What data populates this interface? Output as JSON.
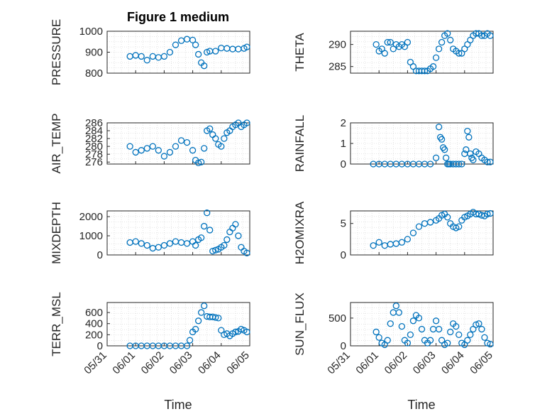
{
  "figure": {
    "title": "Figure 1 medium",
    "marker_color": "#0072BD",
    "xlabel": "Time",
    "x_tick_labels": [
      "05/31",
      "06/01",
      "06/02",
      "06/03",
      "06/04",
      "06/05"
    ]
  },
  "chart_data": [
    {
      "type": "scatter",
      "ylabel": "PRESSURE",
      "ylim": [
        800,
        1000
      ],
      "yticks": [
        800,
        900,
        1000
      ],
      "title": "Figure 1 medium",
      "x": [
        0.8,
        1.0,
        1.2,
        1.4,
        1.6,
        1.8,
        2.0,
        2.2,
        2.4,
        2.6,
        2.8,
        3.0,
        3.1,
        3.2,
        3.3,
        3.4,
        3.5,
        3.6,
        3.8,
        4.0,
        4.2,
        4.4,
        4.6,
        4.8,
        4.9
      ],
      "y": [
        880,
        885,
        880,
        862,
        880,
        875,
        880,
        900,
        935,
        955,
        962,
        958,
        935,
        890,
        850,
        835,
        900,
        905,
        905,
        920,
        918,
        915,
        915,
        918,
        925
      ]
    },
    {
      "type": "scatter",
      "ylabel": "THETA",
      "ylim": [
        283.5,
        293
      ],
      "yticks": [
        285,
        290
      ],
      "x": [
        0.9,
        1.0,
        1.1,
        1.2,
        1.3,
        1.4,
        1.5,
        1.6,
        1.7,
        1.8,
        1.9,
        2.0,
        2.1,
        2.2,
        2.3,
        2.4,
        2.5,
        2.6,
        2.7,
        2.8,
        2.9,
        3.0,
        3.1,
        3.2,
        3.3,
        3.4,
        3.5,
        3.6,
        3.7,
        3.8,
        3.9,
        4.0,
        4.1,
        4.2,
        4.3,
        4.4,
        4.5,
        4.6,
        4.7,
        4.8,
        4.9
      ],
      "y": [
        290,
        288.5,
        289,
        288,
        290.5,
        290.5,
        289,
        290,
        289.5,
        290,
        289.5,
        290.5,
        286,
        285,
        284,
        284,
        284,
        284,
        284,
        284.5,
        285,
        287,
        289,
        290.5,
        292,
        292.5,
        291,
        289,
        288.5,
        288,
        288,
        289,
        290,
        291,
        292,
        292.5,
        292.5,
        292,
        292,
        292.5,
        292
      ]
    },
    {
      "type": "scatter",
      "ylabel": "AIR_TEMP",
      "ylim": [
        275.5,
        286
      ],
      "yticks": [
        276,
        278,
        280,
        282,
        284,
        286
      ],
      "x": [
        0.8,
        1.0,
        1.2,
        1.4,
        1.6,
        1.8,
        2.0,
        2.2,
        2.4,
        2.6,
        2.8,
        3.0,
        3.1,
        3.2,
        3.3,
        3.4,
        3.5,
        3.6,
        3.7,
        3.8,
        3.9,
        4.0,
        4.1,
        4.2,
        4.3,
        4.4,
        4.5,
        4.6,
        4.7,
        4.8,
        4.9
      ],
      "y": [
        280,
        278.5,
        279,
        279.5,
        280,
        279,
        277.5,
        278.5,
        280,
        281.5,
        281,
        279,
        276.5,
        275.8,
        276,
        279.5,
        284,
        284.5,
        283,
        282,
        280.5,
        280,
        282,
        283.5,
        284,
        285,
        285.5,
        286,
        285,
        285.5,
        286
      ]
    },
    {
      "type": "scatter",
      "ylabel": "RAINFALL",
      "ylim": [
        0,
        2
      ],
      "yticks": [
        0,
        1,
        2
      ],
      "x": [
        0.8,
        1.0,
        1.2,
        1.4,
        1.6,
        1.8,
        2.0,
        2.2,
        2.4,
        2.6,
        2.8,
        3.0,
        3.1,
        3.15,
        3.2,
        3.25,
        3.3,
        3.35,
        3.4,
        3.45,
        3.5,
        3.6,
        3.7,
        3.8,
        3.9,
        4.0,
        4.05,
        4.1,
        4.15,
        4.2,
        4.25,
        4.3,
        4.4,
        4.5,
        4.6,
        4.7,
        4.8,
        4.9
      ],
      "y": [
        0,
        0,
        0,
        0,
        0,
        0,
        0,
        0,
        0,
        0,
        0,
        0.3,
        1.8,
        1.3,
        1.2,
        0.8,
        0.7,
        0.3,
        0,
        0,
        0,
        0,
        0,
        0,
        0,
        0.5,
        0.7,
        1.6,
        1.3,
        0.5,
        0.3,
        0.2,
        0.6,
        0.5,
        0.3,
        0.2,
        0.1,
        0.1
      ]
    },
    {
      "type": "scatter",
      "ylabel": "MIXDEPTH",
      "ylim": [
        0,
        2300
      ],
      "yticks": [
        0,
        1000,
        2000
      ],
      "x": [
        0.8,
        1.0,
        1.2,
        1.4,
        1.6,
        1.8,
        2.0,
        2.2,
        2.4,
        2.6,
        2.8,
        3.0,
        3.1,
        3.2,
        3.3,
        3.4,
        3.5,
        3.6,
        3.7,
        3.8,
        3.9,
        4.0,
        4.1,
        4.2,
        4.3,
        4.4,
        4.5,
        4.6,
        4.7,
        4.8,
        4.9
      ],
      "y": [
        650,
        700,
        600,
        500,
        350,
        400,
        500,
        600,
        700,
        650,
        600,
        700,
        500,
        800,
        900,
        1500,
        2200,
        1300,
        200,
        250,
        300,
        400,
        500,
        800,
        1200,
        1400,
        1600,
        1000,
        400,
        200,
        100
      ]
    },
    {
      "type": "scatter",
      "ylabel": "H2OMIXRA",
      "ylim": [
        0,
        7
      ],
      "yticks": [
        0,
        5
      ],
      "x": [
        0.8,
        1.0,
        1.2,
        1.4,
        1.6,
        1.8,
        2.0,
        2.2,
        2.4,
        2.6,
        2.8,
        3.0,
        3.1,
        3.2,
        3.3,
        3.4,
        3.5,
        3.6,
        3.7,
        3.8,
        3.9,
        4.0,
        4.1,
        4.2,
        4.3,
        4.4,
        4.5,
        4.6,
        4.7,
        4.8,
        4.9
      ],
      "y": [
        1.5,
        2,
        1.5,
        1.7,
        1.8,
        2,
        2.5,
        3.5,
        4.5,
        5,
        5.2,
        5.5,
        5.8,
        6.3,
        6.5,
        6,
        5,
        4.5,
        4.3,
        4.5,
        5.5,
        6,
        6.2,
        6.5,
        6.8,
        6.5,
        6.5,
        6.3,
        6.2,
        6.5,
        6.6
      ]
    },
    {
      "type": "scatter",
      "ylabel": "TERR_MSL",
      "ylim": [
        0,
        780
      ],
      "yticks": [
        0,
        200,
        400,
        600
      ],
      "x": [
        0.8,
        1.0,
        1.2,
        1.4,
        1.6,
        1.8,
        2.0,
        2.2,
        2.4,
        2.6,
        2.8,
        2.9,
        3.0,
        3.1,
        3.2,
        3.3,
        3.4,
        3.5,
        3.6,
        3.7,
        3.8,
        3.9,
        4.0,
        4.1,
        4.2,
        4.3,
        4.4,
        4.5,
        4.6,
        4.7,
        4.8,
        4.9
      ],
      "y": [
        0,
        0,
        0,
        0,
        0,
        0,
        0,
        0,
        0,
        0,
        0,
        100,
        250,
        300,
        450,
        600,
        720,
        530,
        520,
        520,
        510,
        500,
        280,
        200,
        220,
        180,
        220,
        250,
        260,
        300,
        280,
        250
      ]
    },
    {
      "type": "scatter",
      "ylabel": "SUN_FLUX",
      "ylim": [
        0,
        780
      ],
      "yticks": [
        0,
        500
      ],
      "x": [
        0.9,
        1.0,
        1.1,
        1.2,
        1.3,
        1.4,
        1.5,
        1.6,
        1.7,
        1.8,
        1.9,
        2.0,
        2.1,
        2.2,
        2.3,
        2.4,
        2.5,
        2.6,
        2.7,
        2.8,
        2.9,
        3.0,
        3.1,
        3.2,
        3.3,
        3.4,
        3.5,
        3.6,
        3.7,
        3.8,
        3.9,
        4.0,
        4.1,
        4.2,
        4.3,
        4.4,
        4.5,
        4.6,
        4.7,
        4.8,
        4.9
      ],
      "y": [
        250,
        150,
        50,
        20,
        100,
        400,
        600,
        720,
        600,
        350,
        100,
        50,
        200,
        450,
        550,
        500,
        300,
        100,
        50,
        100,
        300,
        450,
        300,
        100,
        20,
        50,
        250,
        400,
        350,
        200,
        50,
        20,
        100,
        200,
        300,
        380,
        400,
        300,
        150,
        50,
        30
      ]
    }
  ]
}
